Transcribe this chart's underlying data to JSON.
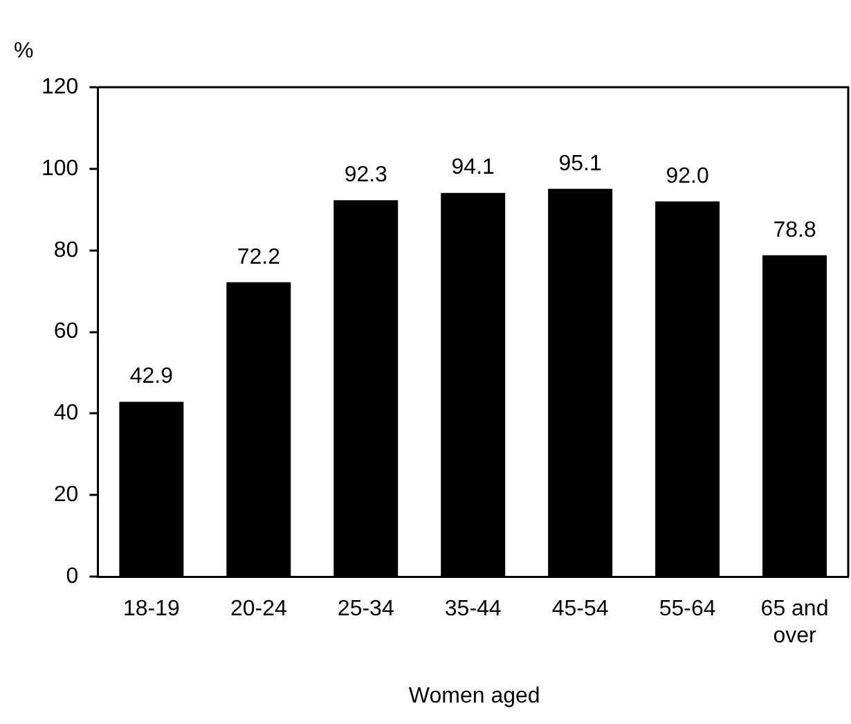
{
  "chart_data": {
    "type": "bar",
    "ylabel": "%",
    "xlabel": "Women aged",
    "categories": [
      "18-19",
      "20-24",
      "25-34",
      "35-44",
      "45-54",
      "55-64",
      "65 and over"
    ],
    "values": [
      42.9,
      72.2,
      92.3,
      94.1,
      95.1,
      92.0,
      78.8
    ],
    "value_labels": [
      "42.9",
      "72.2",
      "92.3",
      "94.1",
      "95.1",
      "92.0",
      "78.8"
    ],
    "color": "#000000",
    "ylim": [
      0,
      120
    ],
    "yticks": [
      0,
      20,
      40,
      60,
      80,
      100,
      120
    ],
    "grid": false,
    "legend": false
  }
}
